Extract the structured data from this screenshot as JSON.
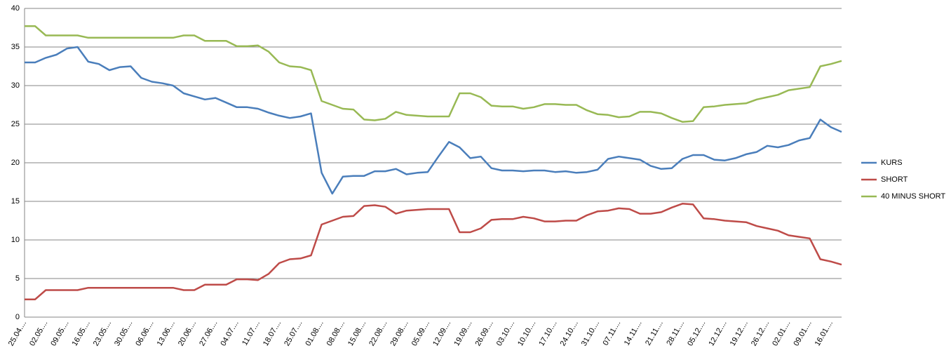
{
  "chart_data": {
    "type": "line",
    "categories": [
      "25.04....",
      null,
      "02.05....",
      null,
      "09.05....",
      null,
      "16.05....",
      null,
      "23.05....",
      null,
      "30.05....",
      null,
      "06.06....",
      null,
      "13.06....",
      null,
      "20.06....",
      null,
      "27.06....",
      null,
      "04.07....",
      null,
      "11.07....",
      null,
      "18.07....",
      null,
      "25.07....",
      null,
      "01.08....",
      null,
      "08.08....",
      null,
      "15.08....",
      null,
      "22.08....",
      null,
      "29.08....",
      null,
      "05.09....",
      null,
      "12.09....",
      null,
      "19.09....",
      null,
      "26.09....",
      null,
      "03.10....",
      null,
      "10.10....",
      null,
      "17.10....",
      null,
      "24.10....",
      null,
      "31.10....",
      null,
      "07.11....",
      null,
      "14.11....",
      null,
      "21.11....",
      null,
      "28.11....",
      null,
      "05.12....",
      null,
      "12.12....",
      null,
      "19.12....",
      null,
      "26.12....",
      null,
      "02.01....",
      null,
      "09.01....",
      null,
      "16.01....",
      null
    ],
    "series": [
      {
        "name": "KURS",
        "color": "#4a7ebb",
        "values": [
          33.0,
          33.0,
          33.6,
          34.0,
          34.8,
          35.0,
          33.1,
          32.8,
          32.0,
          32.4,
          32.5,
          31.0,
          30.5,
          30.3,
          30.0,
          29.0,
          28.6,
          28.2,
          28.4,
          27.8,
          27.2,
          27.2,
          27.0,
          26.5,
          26.1,
          25.8,
          26.0,
          26.4,
          18.7,
          16.0,
          18.2,
          18.3,
          18.3,
          18.9,
          18.9,
          19.2,
          18.5,
          18.7,
          18.8,
          20.8,
          22.7,
          22.0,
          20.6,
          20.8,
          19.3,
          19.0,
          19.0,
          18.9,
          19.0,
          19.0,
          18.8,
          18.9,
          18.7,
          18.8,
          19.1,
          20.5,
          20.8,
          20.6,
          20.4,
          19.6,
          19.2,
          19.3,
          20.5,
          21.0,
          21.0,
          20.4,
          20.3,
          20.6,
          21.1,
          21.4,
          22.2,
          22.0,
          22.3,
          22.9,
          23.2,
          25.6,
          24.6,
          24.0
        ]
      },
      {
        "name": "SHORT",
        "color": "#be4b48",
        "values": [
          2.3,
          2.3,
          3.5,
          3.5,
          3.5,
          3.5,
          3.8,
          3.8,
          3.8,
          3.8,
          3.8,
          3.8,
          3.8,
          3.8,
          3.8,
          3.5,
          3.5,
          4.2,
          4.2,
          4.2,
          4.9,
          4.9,
          4.8,
          5.6,
          7.0,
          7.5,
          7.6,
          8.0,
          12.0,
          12.5,
          13.0,
          13.1,
          14.4,
          14.5,
          14.3,
          13.4,
          13.8,
          13.9,
          14.0,
          14.0,
          14.0,
          11.0,
          11.0,
          11.5,
          12.6,
          12.7,
          12.7,
          13.0,
          12.8,
          12.4,
          12.4,
          12.5,
          12.5,
          13.2,
          13.7,
          13.8,
          14.1,
          14.0,
          13.4,
          13.4,
          13.6,
          14.2,
          14.7,
          14.6,
          12.8,
          12.7,
          12.5,
          12.4,
          12.3,
          11.8,
          11.5,
          11.2,
          10.6,
          10.4,
          10.2,
          7.5,
          7.2,
          6.8
        ]
      },
      {
        "name": "40 MINUS SHORT",
        "color": "#98b954",
        "values": [
          37.7,
          37.7,
          36.5,
          36.5,
          36.5,
          36.5,
          36.2,
          36.2,
          36.2,
          36.2,
          36.2,
          36.2,
          36.2,
          36.2,
          36.2,
          36.5,
          36.5,
          35.8,
          35.8,
          35.8,
          35.1,
          35.1,
          35.2,
          34.4,
          33.0,
          32.5,
          32.4,
          32.0,
          28.0,
          27.5,
          27.0,
          26.9,
          25.6,
          25.5,
          25.7,
          26.6,
          26.2,
          26.1,
          26.0,
          26.0,
          26.0,
          29.0,
          29.0,
          28.5,
          27.4,
          27.3,
          27.3,
          27.0,
          27.2,
          27.6,
          27.6,
          27.5,
          27.5,
          26.8,
          26.3,
          26.2,
          25.9,
          26.0,
          26.6,
          26.6,
          26.4,
          25.8,
          25.3,
          25.4,
          27.2,
          27.3,
          27.5,
          27.6,
          27.7,
          28.2,
          28.5,
          28.8,
          29.4,
          29.6,
          29.8,
          32.5,
          32.8,
          33.2
        ]
      }
    ],
    "ylim": [
      0,
      40
    ],
    "yticks": [
      0,
      5,
      10,
      15,
      20,
      25,
      30,
      35,
      40
    ],
    "grid": true,
    "legend": "right"
  }
}
